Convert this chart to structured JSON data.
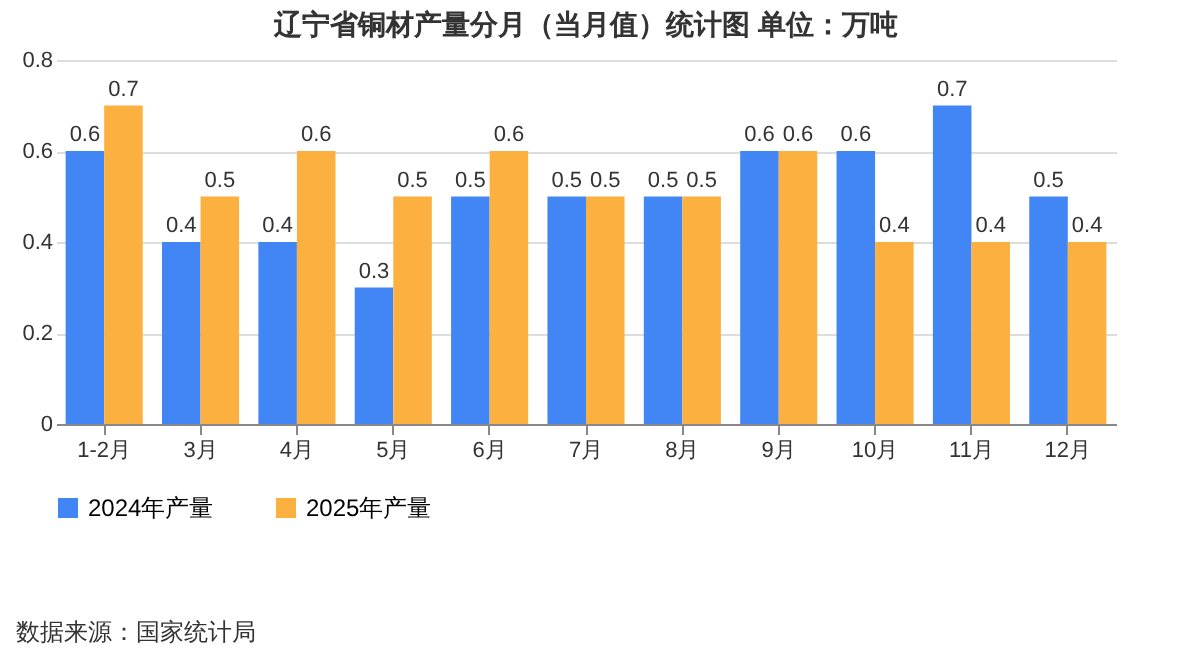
{
  "chart_data": {
    "type": "bar",
    "title": "辽宁省铜材产量分月（当月值）统计图  单位：万吨",
    "categories": [
      "1-2月",
      "3月",
      "4月",
      "5月",
      "6月",
      "7月",
      "8月",
      "9月",
      "10月",
      "11月",
      "12月"
    ],
    "series": [
      {
        "name": "2024年产量",
        "color": "#4285f4",
        "values": [
          0.6,
          0.4,
          0.4,
          0.3,
          0.5,
          0.5,
          0.5,
          0.6,
          0.6,
          0.7,
          0.5
        ]
      },
      {
        "name": "2025年产量",
        "color": "#fbb040",
        "values": [
          0.7,
          0.5,
          0.6,
          0.5,
          0.6,
          0.5,
          0.5,
          0.6,
          0.4,
          0.4,
          0.4
        ]
      }
    ],
    "ylim": [
      0,
      0.8
    ],
    "yticks": [
      0,
      0.2,
      0.4,
      0.6,
      0.8
    ],
    "grid": "y",
    "legend": "bottom",
    "data_labels": true,
    "annotations": [
      "数据来源：国家统计局"
    ]
  }
}
